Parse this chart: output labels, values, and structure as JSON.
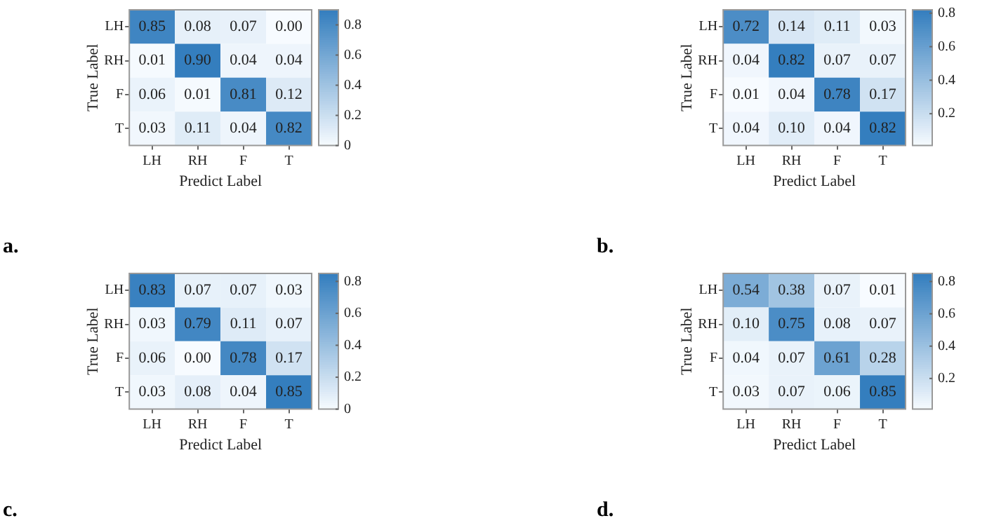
{
  "chart_data": [
    {
      "type": "heatmap",
      "xlabel": "Predict Label",
      "ylabel": "True Label",
      "annotations": [
        "a."
      ],
      "categories": [
        "LH",
        "RH",
        "F",
        "T"
      ],
      "y_categories": [
        "LH",
        "RH",
        "F",
        "T"
      ],
      "cells": [
        [
          0.85,
          0.08,
          0.07,
          0.0
        ],
        [
          0.01,
          0.9,
          0.04,
          0.04
        ],
        [
          0.06,
          0.01,
          0.81,
          0.12
        ],
        [
          0.03,
          0.11,
          0.04,
          0.82
        ]
      ],
      "cell_labels": [
        [
          "0.85",
          "0.08",
          "0.07",
          "0.00"
        ],
        [
          "0.01",
          "0.90",
          "0.04",
          "0.04"
        ],
        [
          "0.06",
          "0.01",
          "0.81",
          "0.12"
        ],
        [
          "0.03",
          "0.11",
          "0.04",
          "0.82"
        ]
      ],
      "clim": [
        0,
        0.9
      ],
      "cticks": [
        0,
        0.2,
        0.4,
        0.6,
        0.8
      ],
      "grid": false
    },
    {
      "type": "heatmap",
      "xlabel": "Predict Label",
      "ylabel": "True Label",
      "annotations": [
        "b."
      ],
      "categories": [
        "LH",
        "RH",
        "F",
        "T"
      ],
      "y_categories": [
        "LH",
        "RH",
        "F",
        "T"
      ],
      "cells": [
        [
          0.72,
          0.14,
          0.11,
          0.03
        ],
        [
          0.04,
          0.82,
          0.07,
          0.07
        ],
        [
          0.01,
          0.04,
          0.78,
          0.17
        ],
        [
          0.04,
          0.1,
          0.04,
          0.82
        ]
      ],
      "cell_labels": [
        [
          "0.72",
          "0.14",
          "0.11",
          "0.03"
        ],
        [
          "0.04",
          "0.82",
          "0.07",
          "0.07"
        ],
        [
          "0.01",
          "0.04",
          "0.78",
          "0.17"
        ],
        [
          "0.04",
          "0.10",
          "0.04",
          "0.82"
        ]
      ],
      "clim": [
        0.01,
        0.82
      ],
      "cticks": [
        0.2,
        0.4,
        0.6,
        0.8
      ],
      "grid": false
    },
    {
      "type": "heatmap",
      "xlabel": "Predict Label",
      "ylabel": "True Label",
      "annotations": [
        "c."
      ],
      "categories": [
        "LH",
        "RH",
        "F",
        "T"
      ],
      "y_categories": [
        "LH",
        "RH",
        "F",
        "T"
      ],
      "cells": [
        [
          0.83,
          0.07,
          0.07,
          0.03
        ],
        [
          0.03,
          0.79,
          0.11,
          0.07
        ],
        [
          0.06,
          0.0,
          0.78,
          0.17
        ],
        [
          0.03,
          0.08,
          0.04,
          0.85
        ]
      ],
      "cell_labels": [
        [
          "0.83",
          "0.07",
          "0.07",
          "0.03"
        ],
        [
          "0.03",
          "0.79",
          "0.11",
          "0.07"
        ],
        [
          "0.06",
          "0.00",
          "0.78",
          "0.17"
        ],
        [
          "0.03",
          "0.08",
          "0.04",
          "0.85"
        ]
      ],
      "clim": [
        0,
        0.85
      ],
      "cticks": [
        0,
        0.2,
        0.4,
        0.6,
        0.8
      ],
      "grid": false
    },
    {
      "type": "heatmap",
      "xlabel": "Predict Label",
      "ylabel": "True Label",
      "annotations": [
        "d."
      ],
      "categories": [
        "LH",
        "RH",
        "F",
        "T"
      ],
      "y_categories": [
        "LH",
        "RH",
        "F",
        "T"
      ],
      "cells": [
        [
          0.54,
          0.38,
          0.07,
          0.01
        ],
        [
          0.1,
          0.75,
          0.08,
          0.07
        ],
        [
          0.04,
          0.07,
          0.61,
          0.28
        ],
        [
          0.03,
          0.07,
          0.06,
          0.85
        ]
      ],
      "cell_labels": [
        [
          "0.54",
          "0.38",
          "0.07",
          "0.01"
        ],
        [
          "0.10",
          "0.75",
          "0.08",
          "0.07"
        ],
        [
          "0.04",
          "0.07",
          "0.61",
          "0.28"
        ],
        [
          "0.03",
          "0.07",
          "0.06",
          "0.85"
        ]
      ],
      "clim": [
        0.01,
        0.85
      ],
      "cticks": [
        0.2,
        0.4,
        0.6,
        0.8
      ],
      "grid": false
    }
  ]
}
